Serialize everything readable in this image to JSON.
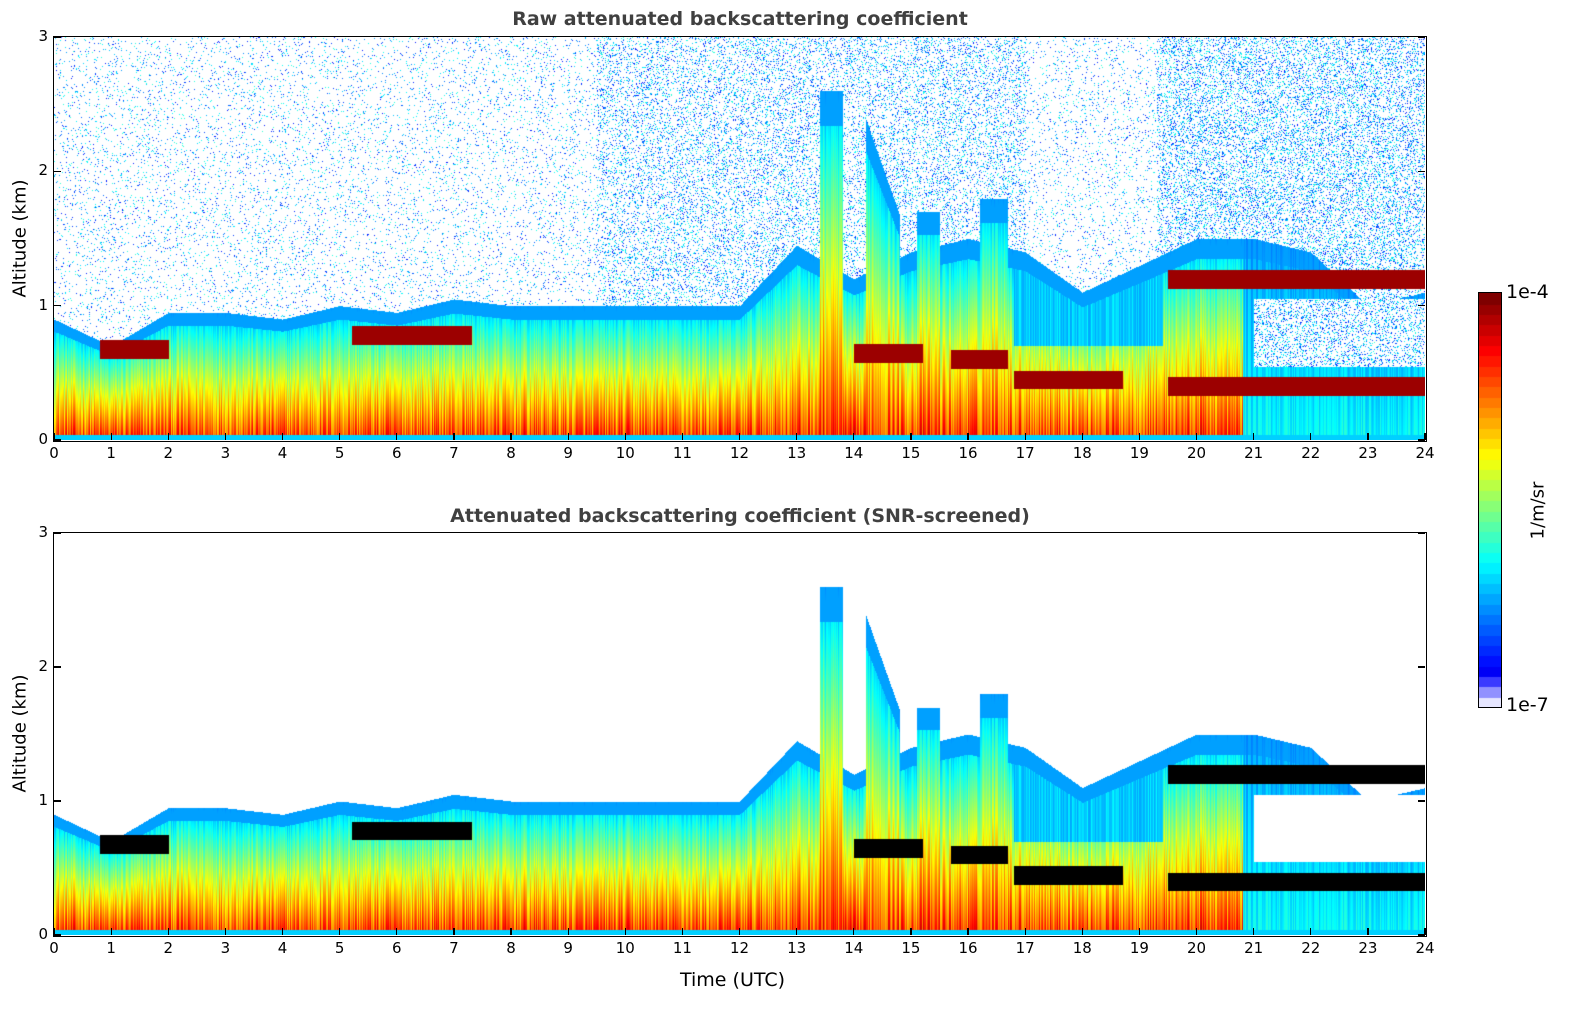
{
  "chart_data": [
    {
      "type": "heatmap",
      "title": "Raw attenuated backscattering coefficient",
      "xlabel": "",
      "ylabel": "Altitude (km)",
      "xlim": [
        0,
        24
      ],
      "ylim": [
        0,
        3
      ],
      "xticks": [
        "0",
        "1",
        "2",
        "3",
        "4",
        "5",
        "6",
        "7",
        "8",
        "9",
        "10",
        "11",
        "12",
        "13",
        "14",
        "15",
        "16",
        "17",
        "18",
        "19",
        "20",
        "21",
        "22",
        "23",
        "24"
      ],
      "yticks": [
        "0",
        "1",
        "2",
        "3"
      ],
      "layer_top_km": [
        0.9,
        0.7,
        0.95,
        0.95,
        0.9,
        1.0,
        0.95,
        1.05,
        1.0,
        1.0,
        1.0,
        1.0,
        1.0,
        1.45,
        1.2,
        1.4,
        1.5,
        1.4,
        1.1,
        1.3,
        1.5,
        1.5,
        1.4,
        1.0,
        1.1
      ],
      "cloud_layers": [
        {
          "start_utc": 0.8,
          "end_utc": 2.0,
          "altitude_km": 0.68
        },
        {
          "start_utc": 5.2,
          "end_utc": 7.3,
          "altitude_km": 0.78
        },
        {
          "start_utc": 14.0,
          "end_utc": 15.2,
          "altitude_km": 0.65
        },
        {
          "start_utc": 15.7,
          "end_utc": 16.7,
          "altitude_km": 0.6
        },
        {
          "start_utc": 16.8,
          "end_utc": 18.7,
          "altitude_km": 0.45
        },
        {
          "start_utc": 19.5,
          "end_utc": 24.0,
          "altitude_km": 0.4
        },
        {
          "start_utc": 19.5,
          "end_utc": 24.0,
          "altitude_km": 1.2
        }
      ],
      "noise": true
    },
    {
      "type": "heatmap",
      "title": "Attenuated backscattering coefficient (SNR-screened)",
      "xlabel": "Time (UTC)",
      "ylabel": "Altitude (km)",
      "xlim": [
        0,
        24
      ],
      "ylim": [
        0,
        3
      ],
      "xticks": [
        "0",
        "1",
        "2",
        "3",
        "4",
        "5",
        "6",
        "7",
        "8",
        "9",
        "10",
        "11",
        "12",
        "13",
        "14",
        "15",
        "16",
        "17",
        "18",
        "19",
        "20",
        "21",
        "22",
        "23",
        "24"
      ],
      "yticks": [
        "0",
        "1",
        "2",
        "3"
      ],
      "noise": false
    }
  ],
  "colorbar": {
    "label": "1/m/sr",
    "max_label": "1e-4",
    "min_label": "1e-7",
    "vmin": 1e-07,
    "vmax": 0.0001,
    "scale": "log",
    "colormap": "jet"
  }
}
